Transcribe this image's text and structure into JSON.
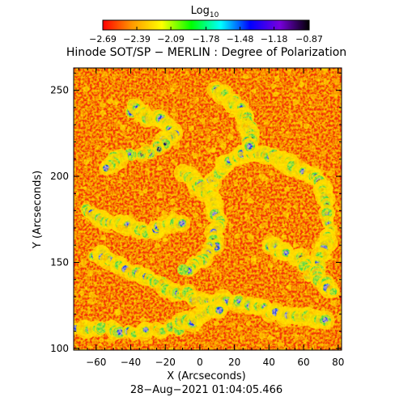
{
  "chart_data": {
    "type": "heatmap",
    "title": "Hinode SOT/SP − MERLIN : Degree of Polarization",
    "xlabel": "X (Arcseconds)",
    "ylabel": "Y (Arcseconds)",
    "timestamp": "28−Aug−2021 01:04:05.466",
    "xlim": [
      -73,
      82
    ],
    "ylim": [
      99,
      263
    ],
    "x_ticks": [
      -60,
      -40,
      -20,
      0,
      20,
      40,
      60,
      80
    ],
    "y_ticks": [
      100,
      150,
      200,
      250
    ],
    "x_tick_labels": [
      "−60",
      "−40",
      "−20",
      "0",
      "20",
      "40",
      "60",
      "80"
    ],
    "y_tick_labels": [
      "100",
      "150",
      "200",
      "250"
    ],
    "colorbar": {
      "label_base": "Log",
      "label_sub": "10",
      "colormap": "rainbow",
      "range": [
        -2.69,
        -0.87
      ],
      "ticks": [
        -2.69,
        -2.39,
        -2.09,
        -1.78,
        -1.48,
        -1.18,
        -0.87
      ],
      "tick_labels": [
        "−2.69",
        "−2.39",
        "−2.09",
        "−1.78",
        "−1.48",
        "−1.18",
        "−0.87"
      ],
      "colors": [
        "#ff0000",
        "#ff9900",
        "#ffff00",
        "#00ff00",
        "#00ffff",
        "#0000ff",
        "#7700dd",
        "#000000"
      ]
    },
    "grid": false
  }
}
